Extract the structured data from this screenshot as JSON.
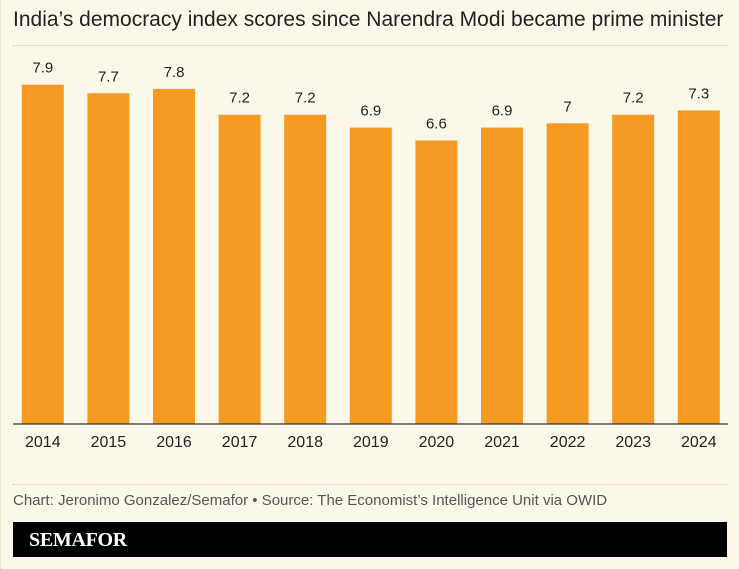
{
  "title": "India’s democracy index scores since Narendra Modi became prime minister",
  "credit": "Chart: Jeronimo Gonzalez/Semafor • Source: The Economist’s Intelligence Unit via OWID",
  "brand": "SEMAFOR",
  "colors": {
    "bar": "#f59a23",
    "background": "#fbf8ea",
    "axis": "#333333",
    "brand_bar": "#000000"
  },
  "chart_data": {
    "type": "bar",
    "title": "India’s democracy index scores since Narendra Modi became prime minister",
    "xlabel": "",
    "ylabel": "",
    "categories": [
      "2014",
      "2015",
      "2016",
      "2017",
      "2018",
      "2019",
      "2020",
      "2021",
      "2022",
      "2023",
      "2024"
    ],
    "values": [
      7.9,
      7.7,
      7.8,
      7.2,
      7.2,
      6.9,
      6.6,
      6.9,
      7,
      7.2,
      7.3
    ],
    "data_labels": [
      "7.9",
      "7.7",
      "7.8",
      "7.2",
      "7.2",
      "6.9",
      "6.6",
      "6.9",
      "7",
      "7.2",
      "7.3"
    ],
    "ylim": [
      0,
      8.8
    ],
    "grid": false,
    "legend": "none"
  }
}
